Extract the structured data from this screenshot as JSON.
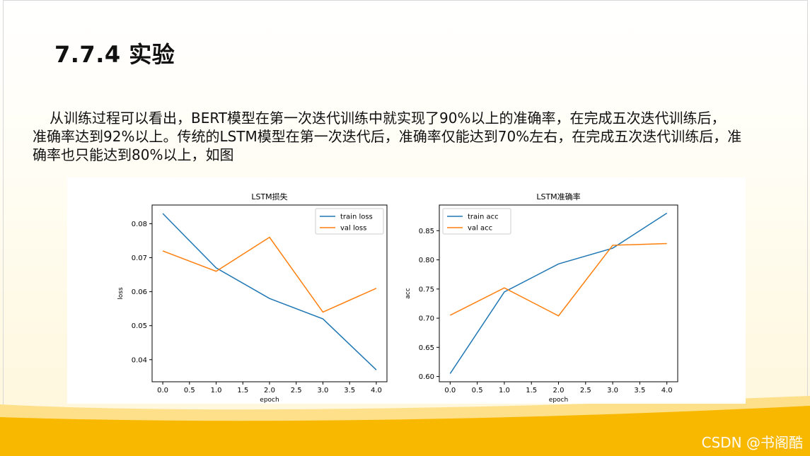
{
  "slide": {
    "title": "7.7.4 实验",
    "paragraph_line1": "从训练过程可以看出，BERT模型在第一次迭代训练中就实现了90%以上的准确率，在完成五次迭代训练后，",
    "paragraph_line2": "准确率达到92%以上。传统的LSTM模型在第一次迭代后，准确率仅能达到70%左右，在完成五次迭代训练后，准",
    "paragraph_line3": "确率也只能达到80%以上，如图",
    "watermark": "CSDN @书阁酷"
  },
  "colors": {
    "blue": "#1f77b4",
    "orange": "#ff7f0e",
    "accent_yellow": "#f9b800"
  },
  "chart_data": [
    {
      "type": "line",
      "title": "LSTM损失",
      "xlabel": "epoch",
      "ylabel": "loss",
      "x": [
        0,
        1,
        2,
        3,
        4
      ],
      "xticks": [
        "0.0",
        "0.5",
        "1.0",
        "1.5",
        "2.0",
        "2.5",
        "3.0",
        "3.5",
        "4.0"
      ],
      "yticks": [
        "0.04",
        "0.05",
        "0.06",
        "0.07",
        "0.08"
      ],
      "xlim": [
        -0.2,
        4.2
      ],
      "ylim": [
        0.0335,
        0.0855
      ],
      "legend_position": "top-right",
      "series": [
        {
          "name": "train loss",
          "values": [
            0.083,
            0.067,
            0.058,
            0.052,
            0.037
          ]
        },
        {
          "name": "val loss",
          "values": [
            0.072,
            0.066,
            0.076,
            0.054,
            0.061
          ]
        }
      ]
    },
    {
      "type": "line",
      "title": "LSTM准确率",
      "xlabel": "epoch",
      "ylabel": "acc",
      "x": [
        0,
        1,
        2,
        3,
        4
      ],
      "xticks": [
        "0.0",
        "0.5",
        "1.0",
        "1.5",
        "2.0",
        "2.5",
        "3.0",
        "3.5",
        "4.0"
      ],
      "yticks": [
        "0.60",
        "0.65",
        "0.70",
        "0.75",
        "0.80",
        "0.85"
      ],
      "xlim": [
        -0.2,
        4.2
      ],
      "ylim": [
        0.591,
        0.894
      ],
      "legend_position": "top-left",
      "series": [
        {
          "name": "train acc",
          "values": [
            0.605,
            0.745,
            0.793,
            0.82,
            0.88
          ]
        },
        {
          "name": "val acc",
          "values": [
            0.705,
            0.752,
            0.704,
            0.825,
            0.828
          ]
        }
      ]
    }
  ]
}
